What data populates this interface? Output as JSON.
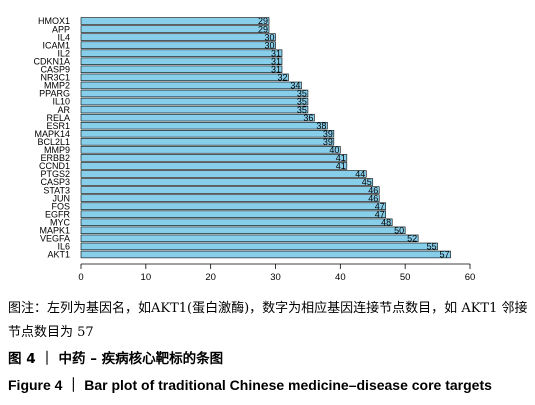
{
  "chart_data": {
    "type": "bar",
    "orientation": "horizontal",
    "categories": [
      "HMOX1",
      "APP",
      "IL4",
      "ICAM1",
      "IL2",
      "CDKN1A",
      "CASP9",
      "NR3C1",
      "MMP2",
      "PPARG",
      "IL10",
      "AR",
      "RELA",
      "ESR1",
      "MAPK14",
      "BCL2L1",
      "MMP9",
      "ERBB2",
      "CCND1",
      "PTGS2",
      "CASP3",
      "STAT3",
      "JUN",
      "FOS",
      "EGFR",
      "MYC",
      "MAPK1",
      "VEGFA",
      "IL6",
      "AKT1"
    ],
    "values": [
      29,
      29,
      30,
      30,
      31,
      31,
      31,
      32,
      34,
      35,
      35,
      35,
      36,
      38,
      39,
      39,
      40,
      41,
      41,
      44,
      45,
      46,
      46,
      47,
      47,
      48,
      50,
      52,
      55,
      57
    ],
    "xlim": [
      0,
      60
    ],
    "xticks": [
      "0",
      "10",
      "20",
      "30",
      "40",
      "50",
      "60"
    ],
    "bar_color": "#87ceeb",
    "grid": false
  },
  "caption": {
    "note": "图注：左列为基因名，如AKT1(蛋白激酶)，数字为相应基因连接节点数目，如 AKT1 邻接节点数目为 57",
    "figure_cn": "图 4 ｜ 中药 – 疾病核心靶标的条图",
    "figure_en": "Figure 4 ｜ Bar plot of traditional Chinese medicine–disease core targets"
  }
}
